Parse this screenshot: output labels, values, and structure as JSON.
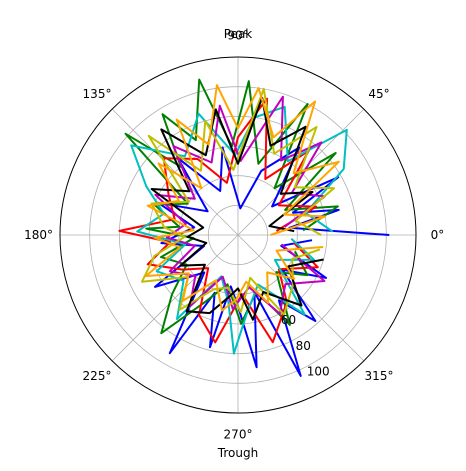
{
  "chart_data": {
    "type": "line",
    "projection": "polar",
    "angle_unit": "degrees",
    "angle_ticks": [
      {
        "deg": 0,
        "label": "0°"
      },
      {
        "deg": 45,
        "label": "45°"
      },
      {
        "deg": 90,
        "label": "90°"
      },
      {
        "deg": 135,
        "label": "135°"
      },
      {
        "deg": 180,
        "label": "180°"
      },
      {
        "deg": 225,
        "label": "225°"
      },
      {
        "deg": 270,
        "label": "270°"
      },
      {
        "deg": 315,
        "label": "315°"
      }
    ],
    "axis_names": {
      "top": "Peak",
      "bottom": "Trough"
    },
    "rlim": [
      0,
      120
    ],
    "radial_gridlines": [
      20,
      40,
      60,
      80,
      100,
      120
    ],
    "radial_tick_labels": [
      {
        "value": 60,
        "label": "60"
      },
      {
        "value": 80,
        "label": "80"
      },
      {
        "value": 100,
        "label": "100"
      }
    ],
    "radial_label_angle": 300,
    "grid": true,
    "legend": "none",
    "series_colors": [
      "#0000ff",
      "#008000",
      "#ff0000",
      "#00bfbf",
      "#bf00bf",
      "#bfbf00",
      "#000000",
      "#ffa500"
    ],
    "series": [
      {
        "color": "#0000ff",
        "points": [
          [
            0,
            102
          ],
          [
            8,
            35
          ],
          [
            14,
            70
          ],
          [
            22,
            40
          ],
          [
            30,
            78
          ],
          [
            40,
            30
          ],
          [
            55,
            72
          ],
          [
            70,
            46
          ],
          [
            85,
            18
          ],
          [
            100,
            60
          ],
          [
            112,
            32
          ],
          [
            128,
            66
          ],
          [
            142,
            26
          ],
          [
            158,
            58
          ],
          [
            170,
            30
          ],
          [
            186,
            52
          ],
          [
            198,
            24
          ],
          [
            212,
            66
          ],
          [
            228,
            34
          ],
          [
            240,
            92
          ],
          [
            248,
            42
          ],
          [
            256,
            78
          ],
          [
            262,
            35
          ],
          [
            270,
            48
          ],
          [
            278,
            90
          ],
          [
            286,
            40
          ],
          [
            294,
            104
          ],
          [
            302,
            52
          ],
          [
            312,
            78
          ],
          [
            322,
            38
          ],
          [
            334,
            66
          ],
          [
            346,
            30
          ],
          [
            356,
            50
          ]
        ]
      },
      {
        "color": "#008000",
        "points": [
          [
            4,
            44
          ],
          [
            16,
            70
          ],
          [
            28,
            36
          ],
          [
            40,
            86
          ],
          [
            52,
            40
          ],
          [
            62,
            100
          ],
          [
            74,
            50
          ],
          [
            86,
            104
          ],
          [
            94,
            60
          ],
          [
            104,
            108
          ],
          [
            114,
            70
          ],
          [
            122,
            96
          ],
          [
            130,
            60
          ],
          [
            138,
            102
          ],
          [
            148,
            40
          ],
          [
            160,
            60
          ],
          [
            172,
            40
          ],
          [
            176,
            62
          ],
          [
            184,
            30
          ],
          [
            196,
            54
          ],
          [
            210,
            40
          ],
          [
            222,
            60
          ],
          [
            232,
            84
          ],
          [
            244,
            50
          ],
          [
            258,
            34
          ],
          [
            272,
            60
          ],
          [
            288,
            40
          ],
          [
            300,
            70
          ],
          [
            316,
            36
          ],
          [
            330,
            54
          ],
          [
            344,
            40
          ]
        ]
      },
      {
        "color": "#ff0000",
        "points": [
          [
            6,
            26
          ],
          [
            20,
            56
          ],
          [
            36,
            34
          ],
          [
            50,
            74
          ],
          [
            64,
            42
          ],
          [
            78,
            94
          ],
          [
            90,
            66
          ],
          [
            102,
            36
          ],
          [
            118,
            58
          ],
          [
            134,
            72
          ],
          [
            150,
            54
          ],
          [
            166,
            44
          ],
          [
            178,
            80
          ],
          [
            186,
            46
          ],
          [
            198,
            64
          ],
          [
            212,
            44
          ],
          [
            228,
            30
          ],
          [
            244,
            60
          ],
          [
            258,
            74
          ],
          [
            274,
            40
          ],
          [
            288,
            76
          ],
          [
            306,
            56
          ],
          [
            320,
            36
          ],
          [
            338,
            58
          ],
          [
            352,
            38
          ]
        ]
      },
      {
        "color": "#00bfbf",
        "points": [
          [
            2,
            64
          ],
          [
            18,
            48
          ],
          [
            32,
            84
          ],
          [
            44,
            102
          ],
          [
            56,
            60
          ],
          [
            70,
            92
          ],
          [
            82,
            80
          ],
          [
            92,
            54
          ],
          [
            108,
            86
          ],
          [
            124,
            64
          ],
          [
            140,
            94
          ],
          [
            152,
            70
          ],
          [
            164,
            52
          ],
          [
            178,
            68
          ],
          [
            190,
            36
          ],
          [
            204,
            60
          ],
          [
            220,
            48
          ],
          [
            234,
            70
          ],
          [
            248,
            30
          ],
          [
            262,
            46
          ],
          [
            268,
            80
          ],
          [
            276,
            54
          ],
          [
            292,
            36
          ],
          [
            310,
            70
          ],
          [
            326,
            30
          ],
          [
            342,
            54
          ],
          [
            356,
            36
          ]
        ]
      },
      {
        "color": "#bf00bf",
        "points": [
          [
            10,
            32
          ],
          [
            24,
            64
          ],
          [
            38,
            46
          ],
          [
            48,
            84
          ],
          [
            60,
            58
          ],
          [
            72,
            98
          ],
          [
            88,
            50
          ],
          [
            98,
            88
          ],
          [
            110,
            52
          ],
          [
            126,
            74
          ],
          [
            140,
            38
          ],
          [
            154,
            62
          ],
          [
            168,
            36
          ],
          [
            182,
            48
          ],
          [
            194,
            30
          ],
          [
            208,
            52
          ],
          [
            224,
            40
          ],
          [
            236,
            58
          ],
          [
            250,
            30
          ],
          [
            266,
            50
          ],
          [
            282,
            36
          ],
          [
            298,
            60
          ],
          [
            314,
            46
          ],
          [
            332,
            66
          ],
          [
            348,
            30
          ]
        ]
      },
      {
        "color": "#bfbf00",
        "points": [
          [
            0,
            56
          ],
          [
            14,
            40
          ],
          [
            26,
            72
          ],
          [
            40,
            50
          ],
          [
            54,
            90
          ],
          [
            66,
            60
          ],
          [
            80,
            100
          ],
          [
            94,
            44
          ],
          [
            106,
            80
          ],
          [
            120,
            50
          ],
          [
            132,
            90
          ],
          [
            146,
            40
          ],
          [
            160,
            62
          ],
          [
            174,
            50
          ],
          [
            182,
            36
          ],
          [
            194,
            58
          ],
          [
            206,
            72
          ],
          [
            220,
            44
          ],
          [
            232,
            64
          ],
          [
            246,
            40
          ],
          [
            260,
            36
          ],
          [
            272,
            52
          ],
          [
            286,
            30
          ],
          [
            300,
            62
          ],
          [
            318,
            50
          ],
          [
            336,
            40
          ],
          [
            350,
            56
          ]
        ]
      },
      {
        "color": "#000000",
        "points": [
          [
            4,
            38
          ],
          [
            16,
            22
          ],
          [
            30,
            58
          ],
          [
            44,
            40
          ],
          [
            58,
            86
          ],
          [
            70,
            64
          ],
          [
            80,
            94
          ],
          [
            90,
            48
          ],
          [
            100,
            86
          ],
          [
            112,
            58
          ],
          [
            126,
            88
          ],
          [
            138,
            44
          ],
          [
            152,
            66
          ],
          [
            168,
            24
          ],
          [
            182,
            34
          ],
          [
            194,
            22
          ],
          [
            208,
            44
          ],
          [
            222,
            30
          ],
          [
            236,
            62
          ],
          [
            250,
            56
          ],
          [
            262,
            42
          ],
          [
            270,
            36
          ],
          [
            280,
            58
          ],
          [
            294,
            42
          ],
          [
            312,
            64
          ],
          [
            328,
            40
          ],
          [
            344,
            60
          ]
        ]
      },
      {
        "color": "#ffa500",
        "points": [
          [
            0,
            22
          ],
          [
            12,
            60
          ],
          [
            24,
            34
          ],
          [
            36,
            84
          ],
          [
            48,
            56
          ],
          [
            60,
            104
          ],
          [
            70,
            70
          ],
          [
            82,
            100
          ],
          [
            90,
            72
          ],
          [
            98,
            102
          ],
          [
            108,
            64
          ],
          [
            118,
            88
          ],
          [
            128,
            40
          ],
          [
            138,
            72
          ],
          [
            150,
            46
          ],
          [
            162,
            64
          ],
          [
            174,
            30
          ],
          [
            182,
            56
          ],
          [
            192,
            40
          ],
          [
            204,
            68
          ],
          [
            218,
            42
          ],
          [
            230,
            58
          ],
          [
            244,
            34
          ],
          [
            258,
            52
          ],
          [
            268,
            44
          ],
          [
            280,
            32
          ],
          [
            294,
            50
          ],
          [
            308,
            32
          ],
          [
            322,
            48
          ],
          [
            338,
            28
          ],
          [
            352,
            58
          ]
        ]
      }
    ]
  }
}
